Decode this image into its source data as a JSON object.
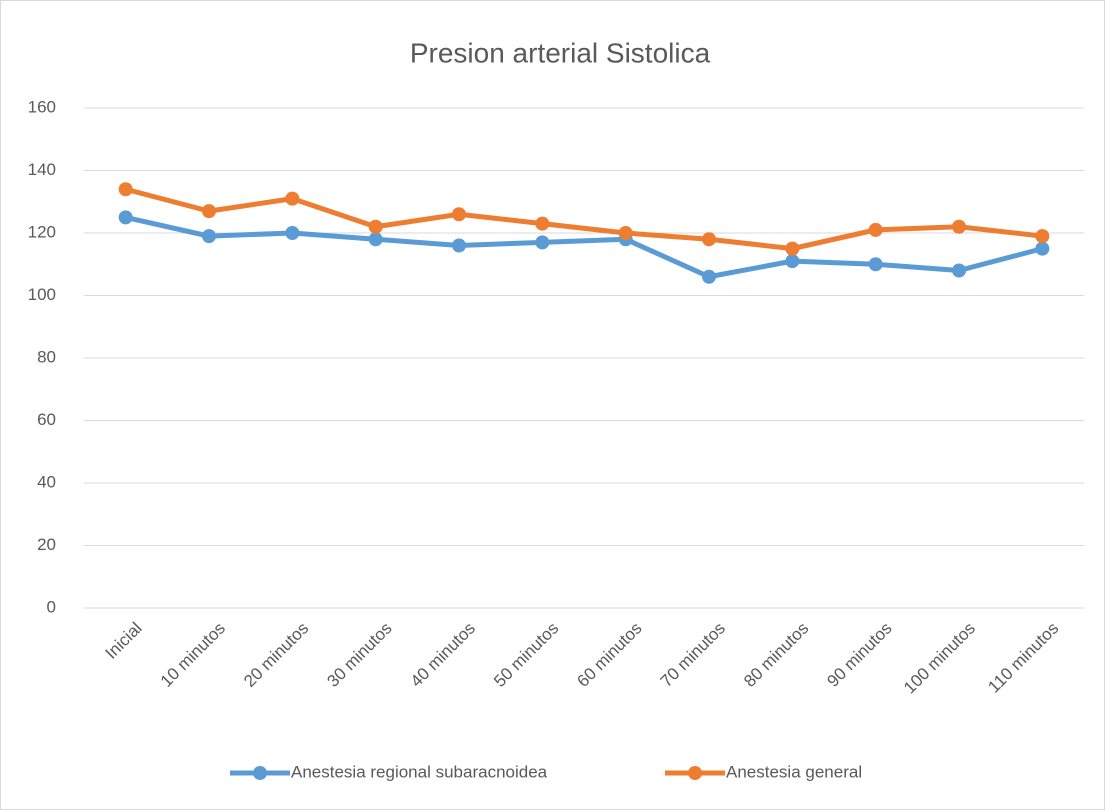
{
  "chart_data": {
    "type": "line",
    "title": "Presion arterial Sistolica",
    "categories": [
      "Inicial",
      "10 minutos",
      "20 minutos",
      "30 minutos",
      "40 minutos",
      "50 minutos",
      "60 minutos",
      "70 minutos",
      "80 minutos",
      "90 minutos",
      "100 minutos",
      "110 minutos"
    ],
    "series": [
      {
        "name": "Anestesia regional subaracnoidea",
        "color": "#5b9bd5",
        "values": [
          125,
          119,
          120,
          118,
          116,
          117,
          118,
          106,
          111,
          110,
          108,
          115
        ]
      },
      {
        "name": "Anestesia general",
        "color": "#ed7d31",
        "values": [
          134,
          127,
          131,
          122,
          126,
          123,
          120,
          118,
          115,
          121,
          122,
          119
        ]
      }
    ],
    "ylim": [
      0,
      160
    ],
    "yticks": [
      0,
      20,
      40,
      60,
      80,
      100,
      120,
      140,
      160
    ],
    "grid": true,
    "legend": "bottom"
  }
}
